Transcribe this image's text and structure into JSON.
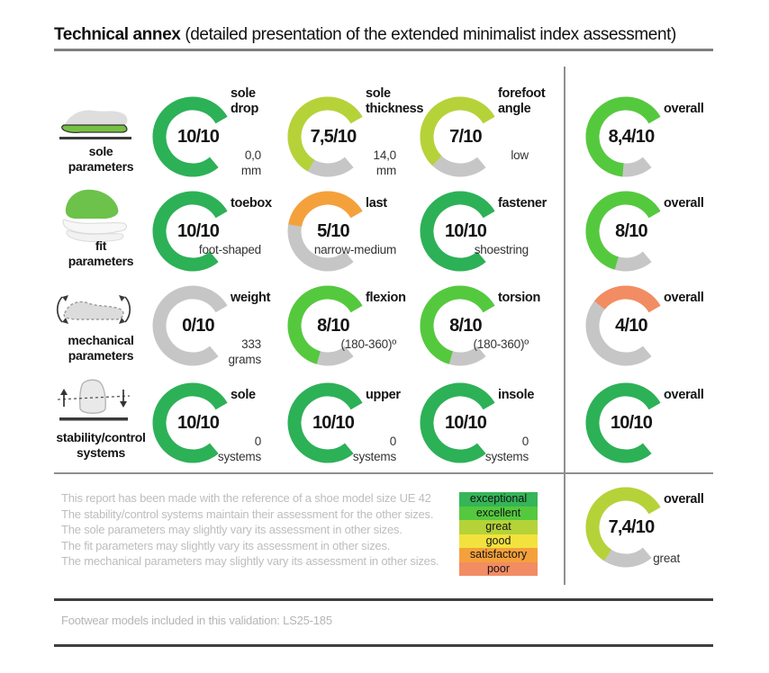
{
  "title": {
    "main": "Technical annex",
    "sub": "(detailed presentation of the extended minimalist index assessment)"
  },
  "colors": {
    "track": "#c6c6c6",
    "exceptional": "#35b557",
    "excellent": "#55c93e",
    "great": "#b5d338",
    "good": "#f2e23e",
    "satisfactory": "#f5a13b",
    "poor": "#f28c63"
  },
  "sections": [
    {
      "label_lines": [
        "sole",
        "parameters"
      ],
      "gauges": [
        {
          "title_lines": [
            "sole",
            "drop"
          ],
          "score": 10,
          "score_label": "10/10",
          "value_lines": [
            "0,0",
            "mm"
          ],
          "color": "#2cb157"
        },
        {
          "title_lines": [
            "sole",
            "thickness"
          ],
          "score": 7.5,
          "score_label": "7,5/10",
          "value_lines": [
            "14,0",
            "mm"
          ],
          "color": "#b5d338"
        },
        {
          "title_lines": [
            "forefoot",
            "angle"
          ],
          "score": 7,
          "score_label": "7/10",
          "value_lines": [
            "low"
          ],
          "color": "#b5d338"
        }
      ],
      "overall": {
        "title_lines": [
          "overall"
        ],
        "score": 8.4,
        "score_label": "8,4/10",
        "value_lines": [],
        "color": "#55c93e"
      }
    },
    {
      "label_lines": [
        "fit",
        "parameters"
      ],
      "gauges": [
        {
          "title_lines": [
            "toebox"
          ],
          "score": 10,
          "score_label": "10/10",
          "value_lines": [
            "foot-shaped"
          ],
          "color": "#2cb157"
        },
        {
          "title_lines": [
            "last"
          ],
          "score": 5,
          "score_label": "5/10",
          "value_lines": [
            "narrow-medium"
          ],
          "color": "#f5a13b"
        },
        {
          "title_lines": [
            "fastener"
          ],
          "score": 10,
          "score_label": "10/10",
          "value_lines": [
            "shoestring"
          ],
          "color": "#2cb157"
        }
      ],
      "overall": {
        "title_lines": [
          "overall"
        ],
        "score": 8,
        "score_label": "8/10",
        "value_lines": [],
        "color": "#55c93e"
      }
    },
    {
      "label_lines": [
        "mechanical",
        "parameters"
      ],
      "gauges": [
        {
          "title_lines": [
            "weight"
          ],
          "score": 0,
          "score_label": "0/10",
          "value_lines": [
            "333",
            "grams"
          ],
          "color": "#c6c6c6"
        },
        {
          "title_lines": [
            "flexion"
          ],
          "score": 8,
          "score_label": "8/10",
          "value_lines": [
            "(180-360)º"
          ],
          "color": "#55c93e"
        },
        {
          "title_lines": [
            "torsion"
          ],
          "score": 8,
          "score_label": "8/10",
          "value_lines": [
            "(180-360)º"
          ],
          "color": "#55c93e"
        }
      ],
      "overall": {
        "title_lines": [
          "overall"
        ],
        "score": 4,
        "score_label": "4/10",
        "value_lines": [],
        "color": "#f28c63"
      }
    },
    {
      "label_lines": [
        "stability/control",
        "systems"
      ],
      "gauges": [
        {
          "title_lines": [
            "sole"
          ],
          "score": 10,
          "score_label": "10/10",
          "value_lines": [
            "0",
            "systems"
          ],
          "color": "#2cb157"
        },
        {
          "title_lines": [
            "upper"
          ],
          "score": 10,
          "score_label": "10/10",
          "value_lines": [
            "0",
            "systems"
          ],
          "color": "#2cb157"
        },
        {
          "title_lines": [
            "insole"
          ],
          "score": 10,
          "score_label": "10/10",
          "value_lines": [
            "0",
            "systems"
          ],
          "color": "#2cb157"
        }
      ],
      "overall": {
        "title_lines": [
          "overall"
        ],
        "score": 10,
        "score_label": "10/10",
        "value_lines": [],
        "color": "#2cb157"
      }
    }
  ],
  "final_overall": {
    "title_lines": [
      "overall"
    ],
    "score": 7.4,
    "score_label": "7,4/10",
    "value_lines": [
      "great"
    ],
    "color": "#b5d338"
  },
  "legend": [
    {
      "label": "exceptional",
      "color": "#35b557"
    },
    {
      "label": "excellent",
      "color": "#55c93e"
    },
    {
      "label": "great",
      "color": "#b5d338"
    },
    {
      "label": "good",
      "color": "#f2e23e"
    },
    {
      "label": "satisfactory",
      "color": "#f5a13b"
    },
    {
      "label": "poor",
      "color": "#f28c63"
    }
  ],
  "notes": [
    "This report has been made with the reference of a shoe model size UE 42",
    "The stability/control systems maintain their assessment for the other sizes.",
    "The sole parameters may slightly vary its assessment in other sizes.",
    "The fit parameters may slightly vary its assessment in other sizes.",
    "The mechanical parameters may slightly vary its assessment in other sizes."
  ],
  "footer": {
    "text": "Footwear models included in this validation: LS25-185"
  },
  "chart_data": {
    "type": "gauge",
    "max": 10,
    "groups": [
      {
        "group": "sole parameters",
        "gauges": [
          {
            "label": "sole drop",
            "score": 10,
            "value": "0,0 mm"
          },
          {
            "label": "sole thickness",
            "score": 7.5,
            "value": "14,0 mm"
          },
          {
            "label": "forefoot angle",
            "score": 7,
            "value": "low"
          }
        ],
        "overall": 8.4
      },
      {
        "group": "fit parameters",
        "gauges": [
          {
            "label": "toebox",
            "score": 10,
            "value": "foot-shaped"
          },
          {
            "label": "last",
            "score": 5,
            "value": "narrow-medium"
          },
          {
            "label": "fastener",
            "score": 10,
            "value": "shoestring"
          }
        ],
        "overall": 8
      },
      {
        "group": "mechanical parameters",
        "gauges": [
          {
            "label": "weight",
            "score": 0,
            "value": "333 grams"
          },
          {
            "label": "flexion",
            "score": 8,
            "value": "(180-360)º"
          },
          {
            "label": "torsion",
            "score": 8,
            "value": "(180-360)º"
          }
        ],
        "overall": 4
      },
      {
        "group": "stability/control systems",
        "gauges": [
          {
            "label": "sole",
            "score": 10,
            "value": "0 systems"
          },
          {
            "label": "upper",
            "score": 10,
            "value": "0 systems"
          },
          {
            "label": "insole",
            "score": 10,
            "value": "0 systems"
          }
        ],
        "overall": 10
      }
    ],
    "final_overall": {
      "score": 7.4,
      "rating": "great"
    }
  }
}
